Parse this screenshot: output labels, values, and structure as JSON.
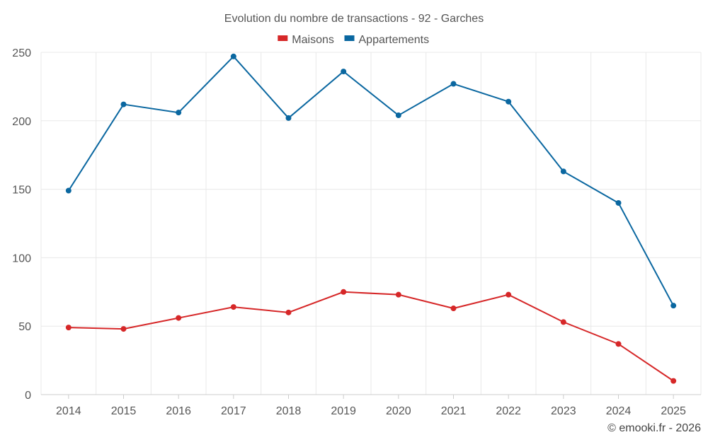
{
  "chart_data": {
    "type": "line",
    "title": "Evolution du nombre de transactions - 92 - Garches",
    "categories": [
      "2014",
      "2015",
      "2016",
      "2017",
      "2018",
      "2019",
      "2020",
      "2021",
      "2022",
      "2023",
      "2024",
      "2025"
    ],
    "series": [
      {
        "name": "Maisons",
        "color": "#d62728",
        "values": [
          49,
          48,
          56,
          64,
          60,
          75,
          73,
          63,
          73,
          53,
          37,
          10
        ]
      },
      {
        "name": "Appartements",
        "color": "#0a67a0",
        "values": [
          149,
          212,
          206,
          247,
          202,
          236,
          204,
          227,
          214,
          163,
          140,
          65
        ]
      }
    ],
    "ylim": [
      0,
      250
    ],
    "yticks": [
      0,
      50,
      100,
      150,
      200,
      250
    ],
    "grid": true,
    "legend": "top-center"
  },
  "credit": "© emooki.fr - 2026"
}
